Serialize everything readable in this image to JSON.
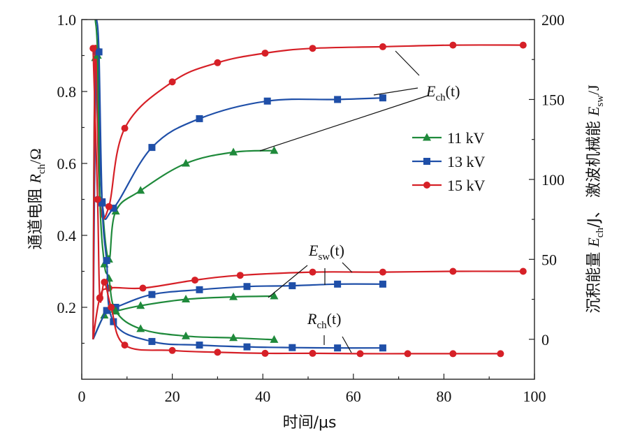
{
  "chart_data": {
    "type": "line",
    "xlabel": "时间/μs",
    "y_left_label": "通道电阻 R_ch/Ω",
    "y_right_label": "沉积能量 E_ch/J、 激波机械能 E_sw/J",
    "xlim": [
      0,
      100
    ],
    "y_left_lim": [
      0,
      1.0
    ],
    "y_right_lim": [
      -25,
      200
    ],
    "x_ticks": [
      "0",
      "20",
      "40",
      "60",
      "80",
      "100"
    ],
    "y_left_ticks": [
      "0.2",
      "0.4",
      "0.6",
      "0.8",
      "1.0"
    ],
    "y_right_ticks": [
      "0",
      "50",
      "100",
      "150",
      "200"
    ],
    "legend": {
      "position": "center-right",
      "entries": [
        {
          "label": "11 kV",
          "color": "#1f8a3b",
          "marker": "triangle"
        },
        {
          "label": "13 kV",
          "color": "#1f4fa8",
          "marker": "square"
        },
        {
          "label": "15 kV",
          "color": "#d62027",
          "marker": "circle"
        }
      ]
    },
    "annotations": [
      {
        "base": "E",
        "sub": "ch",
        "suffix": "(t)"
      },
      {
        "base": "E",
        "sub": "sw",
        "suffix": "(t)"
      },
      {
        "base": "R",
        "sub": "ch",
        "suffix": "(t)"
      }
    ],
    "series": [
      {
        "group": "Ech",
        "voltage": "11 kV",
        "axis": "right",
        "marker": "triangle",
        "color": "#1f8a3b",
        "x": [
          2.5,
          3.0,
          4.5,
          6.0,
          7.5,
          13,
          23,
          33.5,
          42.5
        ],
        "y": [
          0,
          176,
          86,
          50,
          80,
          93,
          110,
          117,
          118
        ]
      },
      {
        "group": "Ech",
        "voltage": "13 kV",
        "axis": "right",
        "marker": "square",
        "color": "#1f4fa8",
        "x": [
          2.5,
          3.3,
          4.5,
          7.0,
          15.5,
          26,
          41,
          56.5,
          66.5
        ],
        "y": [
          0,
          180,
          86,
          82,
          120,
          138,
          149,
          150,
          151
        ]
      },
      {
        "group": "Ech",
        "voltage": "15 kV",
        "axis": "right",
        "marker": "circle",
        "color": "#d62027",
        "x": [
          2.5,
          3.0,
          4.0,
          6.0,
          9.5,
          20,
          30,
          40.5,
          51,
          66.5,
          82,
          97.5
        ],
        "y": [
          0,
          182,
          87,
          83,
          132,
          161,
          173,
          179,
          182,
          183,
          184,
          184
        ]
      },
      {
        "group": "Esw",
        "voltage": "11 kV",
        "axis": "right",
        "marker": "triangle",
        "color": "#1f8a3b",
        "x": [
          2.5,
          5.0,
          7.5,
          13,
          23,
          33.5,
          42.5
        ],
        "y": [
          0,
          15,
          17.5,
          21,
          25,
          26.5,
          27
        ]
      },
      {
        "group": "Esw",
        "voltage": "13 kV",
        "axis": "right",
        "marker": "square",
        "color": "#1f4fa8",
        "x": [
          2.5,
          5.5,
          7.5,
          15.5,
          26,
          36.5,
          46.5,
          56.5,
          66.5
        ],
        "y": [
          0,
          18,
          20,
          28,
          31,
          33,
          33.5,
          34.5,
          34.5
        ]
      },
      {
        "group": "Esw",
        "voltage": "15 kV",
        "axis": "right",
        "marker": "circle",
        "color": "#d62027",
        "x": [
          2.5,
          4.0,
          6.0,
          13.5,
          25,
          35,
          51,
          66.5,
          82,
          97.5
        ],
        "y": [
          0,
          26,
          32,
          32,
          37,
          40,
          42,
          42,
          42.5,
          42.5
        ]
      },
      {
        "group": "Rch",
        "voltage": "11 kV",
        "axis": "left",
        "marker": "triangle",
        "color": "#1f8a3b",
        "x": [
          3.0,
          3.5,
          4.0,
          5.0,
          6.0,
          7.5,
          13,
          23,
          33.5,
          42.5
        ],
        "y": [
          1.0,
          0.9,
          0.5,
          0.32,
          0.28,
          0.19,
          0.14,
          0.12,
          0.115,
          0.11
        ]
      },
      {
        "group": "Rch",
        "voltage": "13 kV",
        "axis": "left",
        "marker": "square",
        "color": "#1f4fa8",
        "x": [
          3.3,
          3.8,
          4.5,
          5.5,
          7.0,
          15.5,
          26,
          36.5,
          46.5,
          56.5,
          66.5
        ],
        "y": [
          1.0,
          0.91,
          0.49,
          0.33,
          0.16,
          0.105,
          0.095,
          0.09,
          0.088,
          0.087,
          0.087
        ]
      },
      {
        "group": "Rch",
        "voltage": "15 kV",
        "axis": "left",
        "marker": "circle",
        "color": "#d62027",
        "x": [
          2.5,
          3.5,
          4.0,
          5.0,
          6.5,
          9.5,
          20,
          30,
          40.5,
          51,
          61.5,
          72,
          82,
          92.5
        ],
        "y": [
          0.92,
          0.5,
          0.225,
          0.27,
          0.2,
          0.095,
          0.08,
          0.075,
          0.072,
          0.072,
          0.071,
          0.071,
          0.071,
          0.071
        ]
      }
    ]
  }
}
